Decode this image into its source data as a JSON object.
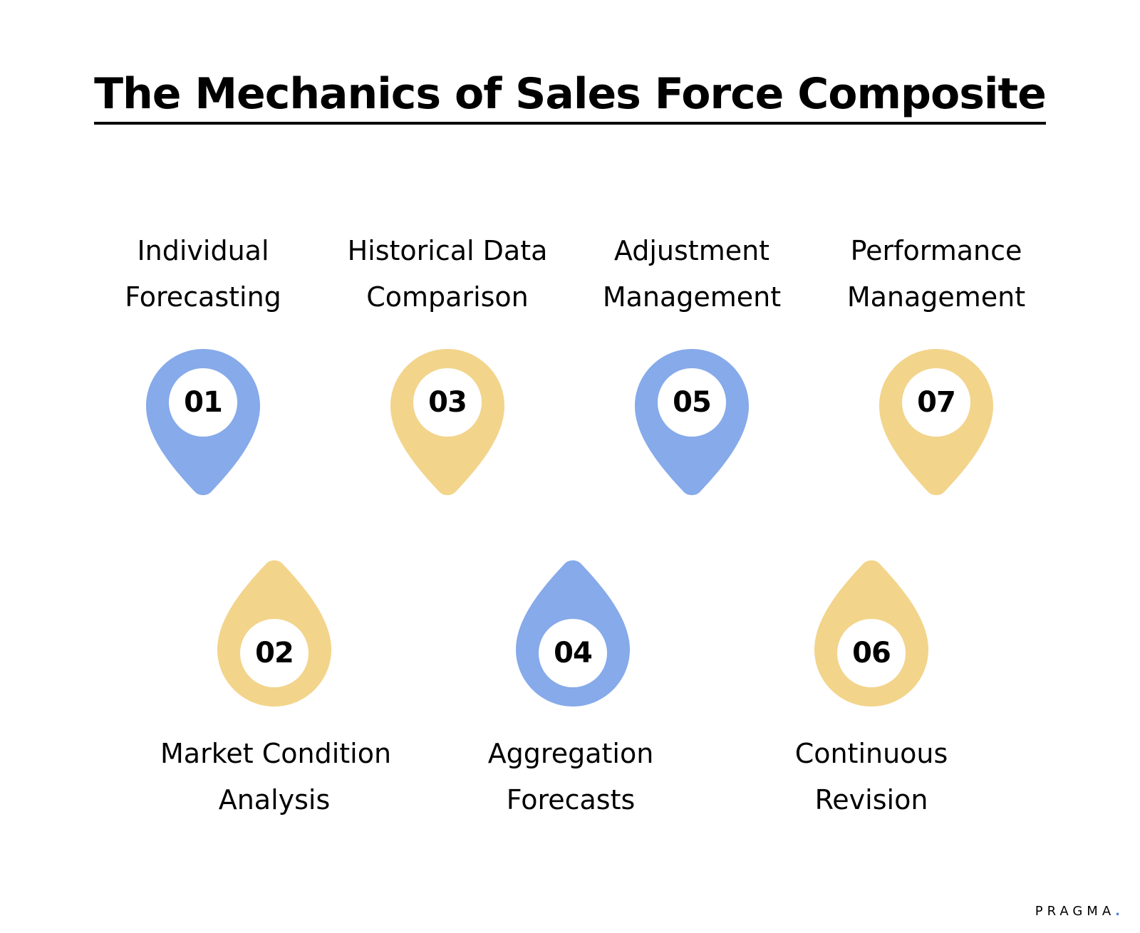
{
  "title": "The Mechanics of Sales Force Composite",
  "colors": {
    "blue": "#86aaea",
    "yellow": "#f2d48b",
    "logo_dot": "#4a7fe0"
  },
  "steps": [
    {
      "number": "01",
      "label_line1": "Individual",
      "label_line2": "Forecasting",
      "color": "#86aaea"
    },
    {
      "number": "02",
      "label_line1": "Market Condition",
      "label_line2": "Analysis",
      "color": "#f2d48b"
    },
    {
      "number": "03",
      "label_line1": "Historical Data",
      "label_line2": "Comparison",
      "color": "#f2d48b"
    },
    {
      "number": "04",
      "label_line1": "Aggregation",
      "label_line2": "Forecasts",
      "color": "#86aaea"
    },
    {
      "number": "05",
      "label_line1": "Adjustment",
      "label_line2": "Management",
      "color": "#86aaea"
    },
    {
      "number": "06",
      "label_line1": "Continuous",
      "label_line2": "Revision",
      "color": "#f2d48b"
    },
    {
      "number": "07",
      "label_line1": "Performance",
      "label_line2": "Management",
      "color": "#f2d48b"
    }
  ],
  "logo": {
    "text": "PRAGMA",
    "dot": "."
  }
}
